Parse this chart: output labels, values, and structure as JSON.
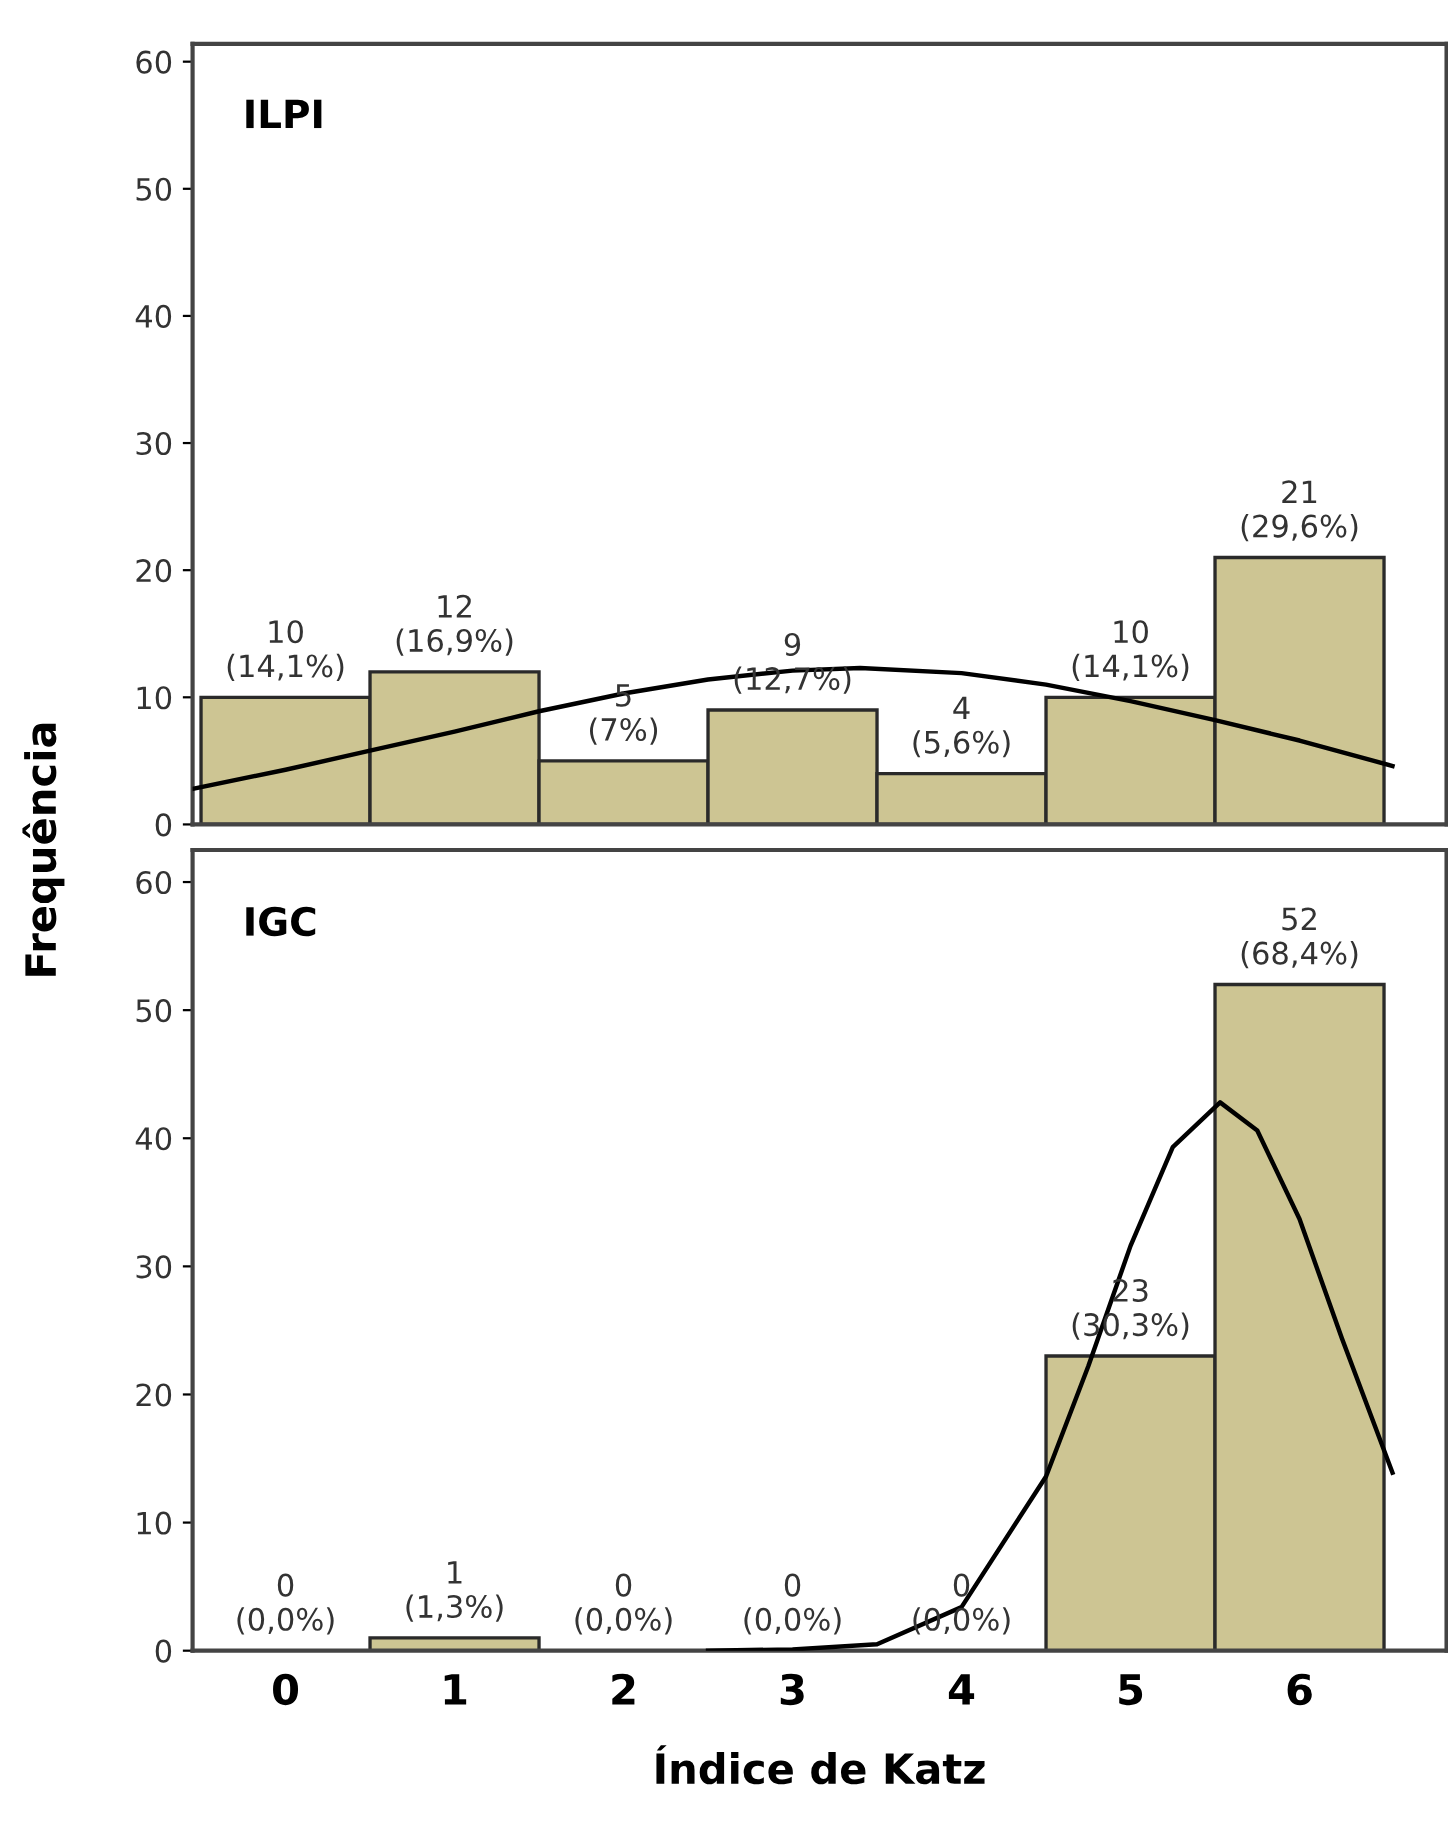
{
  "chart_data": [
    {
      "type": "histogram",
      "title": "ILPI",
      "ylabel": "Frequência",
      "bins": [
        -0.5,
        0.5,
        1.5,
        2.5,
        3.5,
        4.5,
        5.5,
        6.5
      ],
      "values": [
        10,
        12,
        5,
        9,
        4,
        10,
        21
      ],
      "color": "#cdc593",
      "value_labels": [
        "10\n(14,1%)",
        "12\n(16,9%)",
        "5\n(7%)",
        "9\n(12,7%)",
        "4\n(5,6%)",
        "10\n(14,1%)",
        "21\n(29,6%)"
      ],
      "series": [
        {
          "type": "line",
          "color": "#000000",
          "x": [
            -0.55,
            0,
            0.5,
            1,
            1.5,
            2,
            2.5,
            3,
            3.4,
            4,
            4.5,
            5,
            5.5,
            6,
            6.55
          ],
          "values": [
            2.8,
            4.3,
            5.8,
            7.3,
            8.9,
            10.3,
            11.4,
            12.1,
            12.3,
            11.9,
            11.0,
            9.7,
            8.2,
            6.6,
            4.6
          ]
        }
      ],
      "xlim": [
        -0.55,
        6.87
      ],
      "xticks": [
        0,
        1,
        2,
        3,
        4,
        5,
        6
      ],
      "ylim": [
        0,
        61.4
      ],
      "yticks": [
        0,
        10,
        20,
        30,
        40,
        50,
        60
      ],
      "tick_labels": "y",
      "grid": false
    },
    {
      "type": "histogram",
      "title": "IGC",
      "xlabel": "Índice de Katz",
      "bins": [
        -0.5,
        0.5,
        1.5,
        2.5,
        3.5,
        4.5,
        5.5,
        6.5
      ],
      "values": [
        0,
        1,
        0,
        0,
        0,
        23,
        52
      ],
      "color": "#cdc593",
      "value_labels": [
        "0\n(0,0%)",
        "1\n(1,3%)",
        "0\n(0,0%)",
        "0\n(0,0%)",
        "0\n(0,0%)",
        "23\n(30,3%)",
        "52\n(68,4%)"
      ],
      "series": [
        {
          "type": "line",
          "color": "#000000",
          "x": [
            2.5,
            3,
            3.5,
            4,
            4.5,
            4.75,
            5,
            5.25,
            5.53,
            5.75,
            6,
            6.25,
            6.55
          ],
          "values": [
            0,
            0.1,
            0.5,
            3.4,
            13.6,
            22.2,
            31.6,
            39.3,
            42.8,
            40.6,
            33.7,
            24.4,
            13.9
          ]
        }
      ],
      "xlim": [
        -0.55,
        6.87
      ],
      "xticks": [
        0,
        1,
        2,
        3,
        4,
        5,
        6
      ],
      "ylim": [
        0,
        62.5
      ],
      "yticks": [
        0,
        10,
        20,
        30,
        40,
        50,
        60
      ],
      "grid": false
    }
  ]
}
